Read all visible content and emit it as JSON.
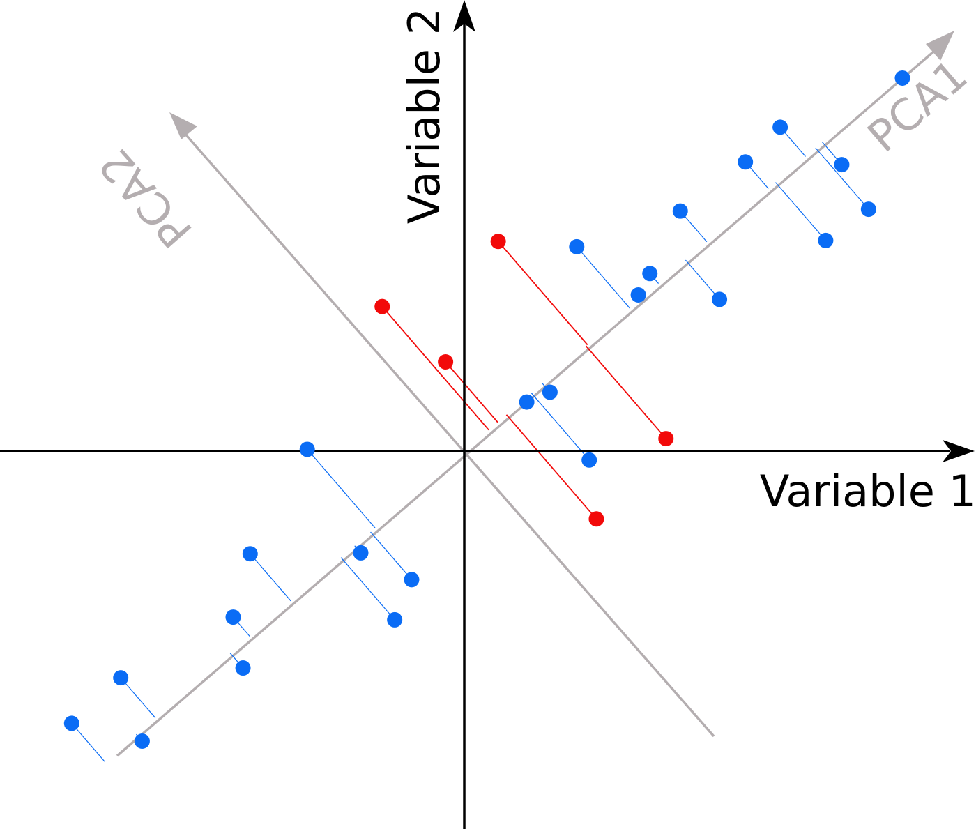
{
  "colors": {
    "background": "#ffffff",
    "axis": "#000000",
    "pca": "#b4aeb0",
    "inlier": "#0a6cf5",
    "outlier": "#f20a0a"
  },
  "axes": {
    "x_label": "Variable 1",
    "y_label": "Variable 2"
  },
  "pca": {
    "pc1_label": "PCA1",
    "pc2_label": "PCA2"
  },
  "points": [
    {
      "group": "inlier",
      "x": 1.4,
      "y": -0.1
    },
    {
      "group": "inlier",
      "x": 0.7,
      "y": 0.55
    },
    {
      "group": "inlier",
      "x": 0.96,
      "y": 0.66
    },
    {
      "group": "inlier",
      "x": 1.95,
      "y": 1.75
    },
    {
      "group": "inlier",
      "x": 2.08,
      "y": 1.99
    },
    {
      "group": "inlier",
      "x": 1.26,
      "y": 2.29
    },
    {
      "group": "inlier",
      "x": 2.42,
      "y": 2.69
    },
    {
      "group": "inlier",
      "x": 2.86,
      "y": 1.7
    },
    {
      "group": "inlier",
      "x": 3.15,
      "y": 3.24
    },
    {
      "group": "inlier",
      "x": 3.54,
      "y": 3.63
    },
    {
      "group": "inlier",
      "x": 4.05,
      "y": 2.36
    },
    {
      "group": "inlier",
      "x": 4.23,
      "y": 3.21
    },
    {
      "group": "inlier",
      "x": 4.53,
      "y": 2.71
    },
    {
      "group": "inlier",
      "x": 4.91,
      "y": 4.18
    },
    {
      "group": "inlier",
      "x": -1.76,
      "y": 0.02
    },
    {
      "group": "inlier",
      "x": -1.16,
      "y": -1.14
    },
    {
      "group": "inlier",
      "x": -0.59,
      "y": -1.44
    },
    {
      "group": "inlier",
      "x": -0.78,
      "y": -1.89
    },
    {
      "group": "inlier",
      "x": -2.4,
      "y": -1.15
    },
    {
      "group": "inlier",
      "x": -2.59,
      "y": -1.86
    },
    {
      "group": "inlier",
      "x": -2.48,
      "y": -2.43
    },
    {
      "group": "inlier",
      "x": -3.85,
      "y": -2.54
    },
    {
      "group": "inlier",
      "x": -3.61,
      "y": -3.25
    },
    {
      "group": "inlier",
      "x": -4.4,
      "y": -3.05
    },
    {
      "group": "outlier",
      "x": 0.38,
      "y": 2.35
    },
    {
      "group": "outlier",
      "x": -0.92,
      "y": 1.62
    },
    {
      "group": "outlier",
      "x": -0.21,
      "y": 1.0
    },
    {
      "group": "outlier",
      "x": 2.26,
      "y": 0.14
    },
    {
      "group": "outlier",
      "x": 1.48,
      "y": -0.76
    }
  ]
}
